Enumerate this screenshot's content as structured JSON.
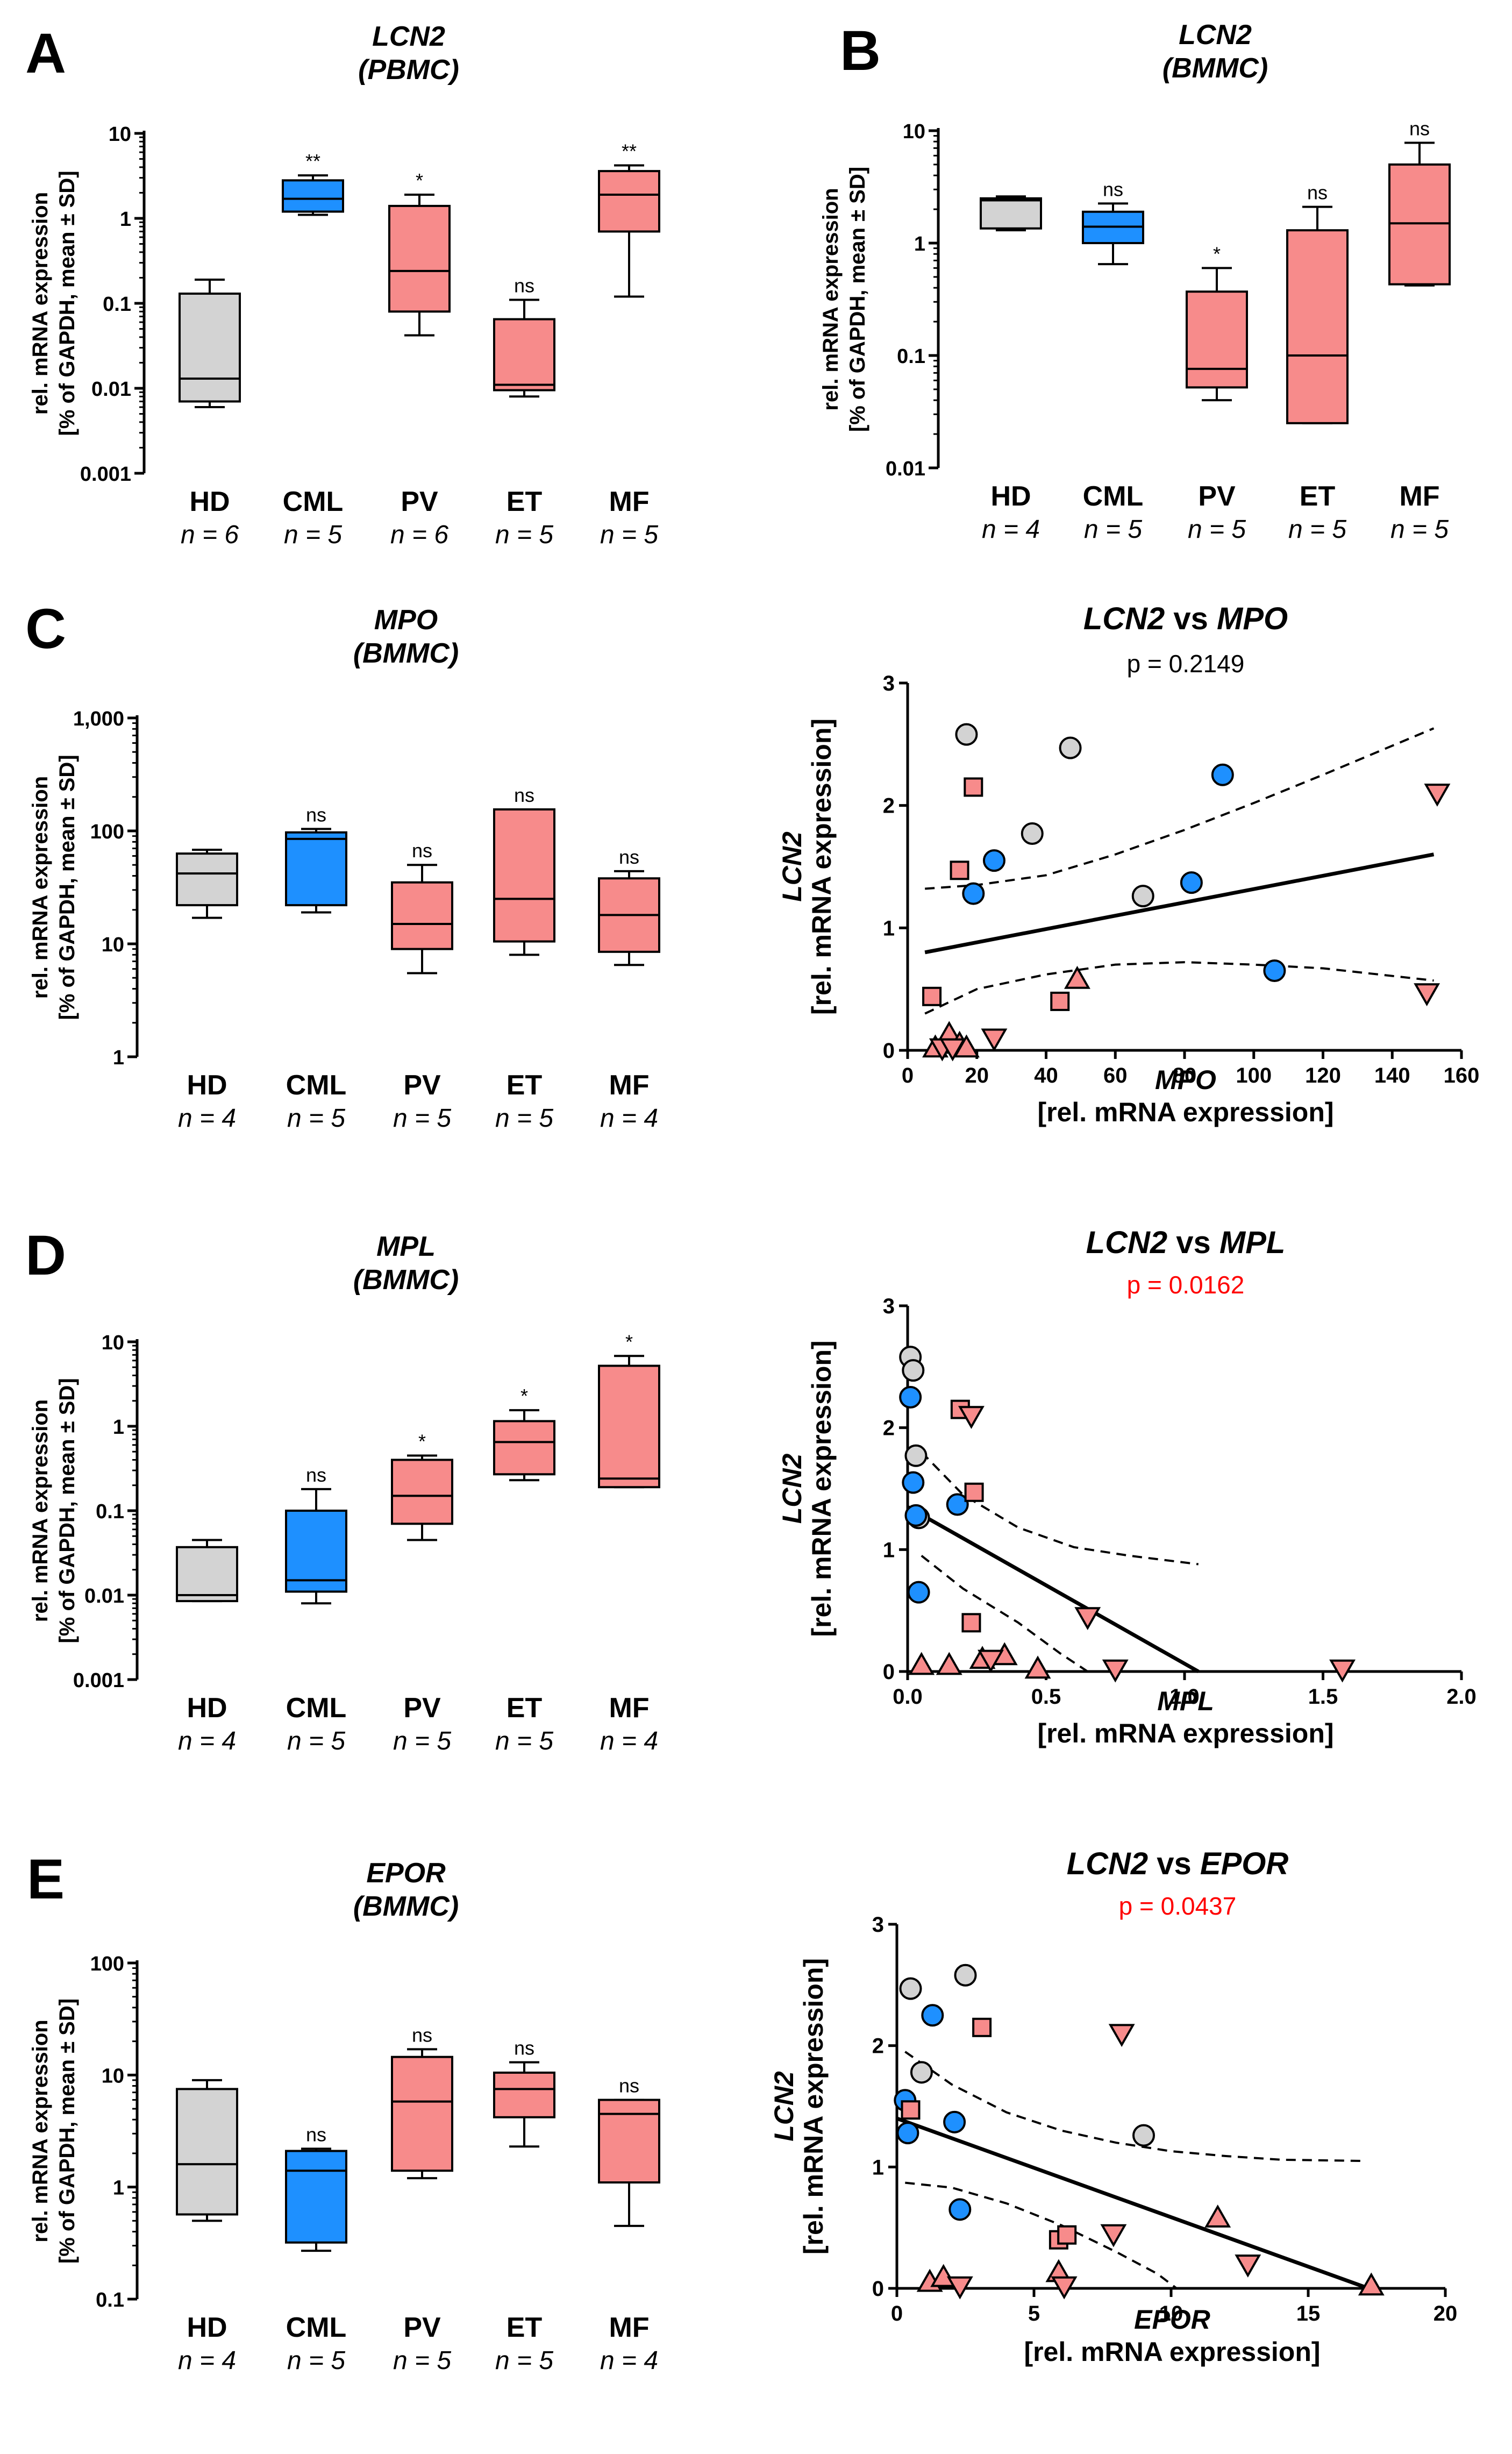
{
  "figure_colors": {
    "HD": "#d3d3d3",
    "CML": "#1e90ff",
    "MPN": "#f78b8b",
    "sig": "#ff0000",
    "fg": "#000000"
  },
  "chart_data": [
    {
      "id": "A",
      "type": "box",
      "panel_letter": "A",
      "title_line1": "LCN2",
      "title_line2": "(PBMC)",
      "ylabel_line1": "rel. mRNA expression",
      "ylabel_line2": "[% of GAPDH, mean ± SD]",
      "scale": "log",
      "ylim": [
        0.001,
        10
      ],
      "yticks": [
        0.001,
        0.01,
        0.1,
        1,
        10
      ],
      "ytick_labels": [
        "0.001",
        "0.01",
        "0.1",
        "1",
        "10"
      ],
      "categories": [
        "HD",
        "CML",
        "PV",
        "ET",
        "MF"
      ],
      "n_labels": [
        "n = 6",
        "n = 5",
        "n = 6",
        "n = 5",
        "n = 5"
      ],
      "colors": [
        "#d3d3d3",
        "#1e90ff",
        "#f78b8b",
        "#f78b8b",
        "#f78b8b"
      ],
      "boxes": [
        {
          "min": 0.006,
          "q1": 0.007,
          "median": 0.013,
          "q3": 0.13,
          "max": 0.19,
          "sig": ""
        },
        {
          "min": 1.1,
          "q1": 1.2,
          "median": 1.7,
          "q3": 2.8,
          "max": 3.2,
          "sig": "**"
        },
        {
          "min": 0.042,
          "q1": 0.08,
          "median": 0.24,
          "q3": 1.4,
          "max": 1.9,
          "sig": "*"
        },
        {
          "min": 0.008,
          "q1": 0.0095,
          "median": 0.011,
          "q3": 0.065,
          "max": 0.11,
          "sig": "ns"
        },
        {
          "min": 0.12,
          "q1": 0.7,
          "median": 1.9,
          "q3": 3.6,
          "max": 4.2,
          "sig": "**"
        }
      ]
    },
    {
      "id": "B",
      "type": "box",
      "panel_letter": "B",
      "title_line1": "LCN2",
      "title_line2": "(BMMC)",
      "ylabel_line1": "rel. mRNA expression",
      "ylabel_line2": "[% of GAPDH, mean ± SD]",
      "scale": "log",
      "ylim": [
        0.01,
        10
      ],
      "yticks": [
        0.01,
        0.1,
        1,
        10
      ],
      "ytick_labels": [
        "0.01",
        "0.1",
        "1",
        "10"
      ],
      "categories": [
        "HD",
        "CML",
        "PV",
        "ET",
        "MF"
      ],
      "n_labels": [
        "n = 4",
        "n = 5",
        "n = 5",
        "n = 5",
        "n = 5"
      ],
      "colors": [
        "#d3d3d3",
        "#1e90ff",
        "#f78b8b",
        "#f78b8b",
        "#f78b8b"
      ],
      "boxes": [
        {
          "min": 1.3,
          "q1": 1.35,
          "median": 2.4,
          "q3": 2.5,
          "max": 2.6,
          "sig": ""
        },
        {
          "min": 0.65,
          "q1": 1.0,
          "median": 1.4,
          "q3": 1.9,
          "max": 2.25,
          "sig": "ns"
        },
        {
          "min": 0.04,
          "q1": 0.052,
          "median": 0.076,
          "q3": 0.37,
          "max": 0.6,
          "sig": "*"
        },
        {
          "min": 0.025,
          "q1": 0.025,
          "median": 0.1,
          "q3": 1.3,
          "max": 2.1,
          "sig": "ns"
        },
        {
          "min": 0.42,
          "q1": 0.43,
          "median": 1.5,
          "q3": 5.0,
          "max": 7.8,
          "sig": "ns"
        }
      ]
    },
    {
      "id": "C",
      "type": "box",
      "panel_letter": "C",
      "title_line1": "MPO",
      "title_line2": "(BMMC)",
      "ylabel_line1": "rel. mRNA expression",
      "ylabel_line2": "[% of GAPDH, mean ± SD]",
      "scale": "log",
      "ylim": [
        1,
        1000
      ],
      "yticks": [
        1,
        10,
        100,
        1000
      ],
      "ytick_labels": [
        "1",
        "10",
        "100",
        "1,000"
      ],
      "categories": [
        "HD",
        "CML",
        "PV",
        "ET",
        "MF"
      ],
      "n_labels": [
        "n = 4",
        "n = 5",
        "n = 5",
        "n = 5",
        "n = 4"
      ],
      "colors": [
        "#d3d3d3",
        "#1e90ff",
        "#f78b8b",
        "#f78b8b",
        "#f78b8b"
      ],
      "boxes": [
        {
          "min": 17,
          "q1": 22,
          "median": 42,
          "q3": 63,
          "max": 68,
          "sig": ""
        },
        {
          "min": 19,
          "q1": 22,
          "median": 85,
          "q3": 97,
          "max": 104,
          "sig": "ns"
        },
        {
          "min": 5.5,
          "q1": 9,
          "median": 15,
          "q3": 35,
          "max": 50,
          "sig": "ns"
        },
        {
          "min": 8,
          "q1": 10.5,
          "median": 25,
          "q3": 155,
          "max": 155,
          "sig": "ns"
        },
        {
          "min": 6.5,
          "q1": 8.5,
          "median": 18,
          "q3": 38,
          "max": 44,
          "sig": "ns"
        }
      ]
    },
    {
      "id": "D",
      "type": "box",
      "panel_letter": "D",
      "title_line1": "MPL",
      "title_line2": "(BMMC)",
      "ylabel_line1": "rel. mRNA expression",
      "ylabel_line2": "[% of GAPDH, mean ± SD]",
      "scale": "log",
      "ylim": [
        0.001,
        10
      ],
      "yticks": [
        0.001,
        0.01,
        0.1,
        1,
        10
      ],
      "ytick_labels": [
        "0.001",
        "0.01",
        "0.1",
        "1",
        "10"
      ],
      "categories": [
        "HD",
        "CML",
        "PV",
        "ET",
        "MF"
      ],
      "n_labels": [
        "n = 4",
        "n = 5",
        "n = 5",
        "n = 5",
        "n = 4"
      ],
      "colors": [
        "#d3d3d3",
        "#1e90ff",
        "#f78b8b",
        "#f78b8b",
        "#f78b8b"
      ],
      "boxes": [
        {
          "min": 0.0085,
          "q1": 0.0085,
          "median": 0.01,
          "q3": 0.037,
          "max": 0.045,
          "sig": ""
        },
        {
          "min": 0.008,
          "q1": 0.011,
          "median": 0.015,
          "q3": 0.1,
          "max": 0.18,
          "sig": "ns"
        },
        {
          "min": 0.045,
          "q1": 0.07,
          "median": 0.15,
          "q3": 0.4,
          "max": 0.45,
          "sig": "*"
        },
        {
          "min": 0.23,
          "q1": 0.27,
          "median": 0.65,
          "q3": 1.15,
          "max": 1.55,
          "sig": "*"
        },
        {
          "min": 0.19,
          "q1": 0.19,
          "median": 0.24,
          "q3": 5.2,
          "max": 6.8,
          "sig": "*"
        }
      ]
    },
    {
      "id": "E",
      "type": "box",
      "panel_letter": "E",
      "title_line1": "EPOR",
      "title_line2": "(BMMC)",
      "ylabel_line1": "rel. mRNA expression",
      "ylabel_line2": "[% of GAPDH, mean ± SD]",
      "scale": "log",
      "ylim": [
        0.1,
        100
      ],
      "yticks": [
        0.1,
        1,
        10,
        100
      ],
      "ytick_labels": [
        "0.1",
        "1",
        "10",
        "100"
      ],
      "categories": [
        "HD",
        "CML",
        "PV",
        "ET",
        "MF"
      ],
      "n_labels": [
        "n = 4",
        "n = 5",
        "n = 5",
        "n = 5",
        "n = 4"
      ],
      "colors": [
        "#d3d3d3",
        "#1e90ff",
        "#f78b8b",
        "#f78b8b",
        "#f78b8b"
      ],
      "boxes": [
        {
          "min": 0.5,
          "q1": 0.57,
          "median": 1.6,
          "q3": 7.5,
          "max": 9,
          "sig": ""
        },
        {
          "min": 0.27,
          "q1": 0.32,
          "median": 1.4,
          "q3": 2.1,
          "max": 2.2,
          "sig": "ns"
        },
        {
          "min": 1.2,
          "q1": 1.4,
          "median": 5.8,
          "q3": 14.5,
          "max": 17,
          "sig": "ns"
        },
        {
          "min": 2.3,
          "q1": 4.2,
          "median": 7.5,
          "q3": 10.5,
          "max": 13,
          "sig": "ns"
        },
        {
          "min": 0.45,
          "q1": 1.1,
          "median": 4.5,
          "q3": 6.0,
          "max": 6.0,
          "sig": "ns"
        }
      ]
    },
    {
      "id": "C2",
      "type": "scatter",
      "title_part1": "LCN2",
      "title_mid": " vs ",
      "title_part2": "MPO",
      "p_text": "p = 0.2149",
      "p_significant": false,
      "xlabel_line1": "MPO",
      "xlabel_line2": "[rel. mRNA expression]",
      "ylabel_line1": "LCN2",
      "ylabel_line2": "[rel. mRNA expression]",
      "xlim": [
        0,
        160
      ],
      "ylim": [
        0,
        3
      ],
      "xticks": [
        0,
        20,
        40,
        60,
        80,
        100,
        120,
        140,
        160
      ],
      "xtick_labels": [
        "0",
        "20",
        "40",
        "60",
        "80",
        "100",
        "120",
        "140",
        "160"
      ],
      "yticks": [
        0,
        1,
        2,
        3
      ],
      "ytick_labels": [
        "0",
        "1",
        "2",
        "3"
      ],
      "regression": {
        "x": [
          5,
          152
        ],
        "y": [
          0.8,
          1.6
        ]
      },
      "ci_upper": {
        "x": [
          5,
          20,
          40,
          60,
          80,
          100,
          120,
          152
        ],
        "y": [
          1.32,
          1.35,
          1.43,
          1.6,
          1.8,
          2.02,
          2.25,
          2.63
        ]
      },
      "ci_lower": {
        "x": [
          5,
          20,
          40,
          60,
          80,
          100,
          120,
          152
        ],
        "y": [
          0.3,
          0.5,
          0.62,
          0.7,
          0.72,
          0.7,
          0.67,
          0.57
        ]
      },
      "points": [
        {
          "group": "HD",
          "shape": "circle",
          "x": [
            17,
            36,
            47,
            68
          ],
          "y": [
            2.58,
            1.77,
            2.47,
            1.26
          ]
        },
        {
          "group": "CML",
          "shape": "circle",
          "x": [
            19,
            25,
            82,
            91,
            106
          ],
          "y": [
            1.28,
            1.55,
            1.37,
            2.25,
            0.65
          ]
        },
        {
          "group": "PV",
          "shape": "square",
          "x": [
            7,
            15,
            19,
            44
          ],
          "y": [
            0.44,
            1.47,
            2.15,
            0.4
          ]
        },
        {
          "group": "ET",
          "shape": "triangle-up",
          "x": [
            8,
            12,
            15,
            17,
            49
          ],
          "y": [
            0.02,
            0.13,
            0.05,
            0.02,
            0.58
          ]
        },
        {
          "group": "MF",
          "shape": "triangle-down",
          "x": [
            10,
            13,
            25,
            150,
            153
          ],
          "y": [
            0.02,
            0.02,
            0.1,
            0.47,
            2.1
          ]
        }
      ]
    },
    {
      "id": "D2",
      "type": "scatter",
      "title_part1": "LCN2",
      "title_mid": " vs ",
      "title_part2": "MPL",
      "p_text": "p = 0.0162",
      "p_significant": true,
      "xlabel_line1": "MPL",
      "xlabel_line2": "[rel. mRNA expression]",
      "ylabel_line1": "LCN2",
      "ylabel_line2": "[rel. mRNA expression]",
      "xlim": [
        0,
        2
      ],
      "ylim": [
        0,
        3
      ],
      "xticks": [
        0,
        0.5,
        1,
        1.5,
        2
      ],
      "xtick_labels": [
        "0.0",
        "0.5",
        "1.0",
        "1.5",
        "2.0"
      ],
      "yticks": [
        0,
        1,
        2,
        3
      ],
      "ytick_labels": [
        "0",
        "1",
        "2",
        "3"
      ],
      "regression": {
        "x": [
          0,
          1.05
        ],
        "y": [
          1.35,
          0
        ]
      },
      "ci_upper": {
        "x": [
          0.05,
          0.2,
          0.4,
          0.6,
          0.8,
          1.05
        ],
        "y": [
          1.8,
          1.45,
          1.18,
          1.02,
          0.95,
          0.88
        ]
      },
      "ci_lower": {
        "x": [
          0.05,
          0.2,
          0.4,
          0.55,
          0.65
        ],
        "y": [
          0.95,
          0.68,
          0.4,
          0.15,
          0
        ]
      },
      "points": [
        {
          "group": "HD",
          "shape": "circle",
          "x": [
            0.01,
            0.02,
            0.03,
            0.04
          ],
          "y": [
            2.58,
            2.47,
            1.77,
            1.26
          ]
        },
        {
          "group": "CML",
          "shape": "circle",
          "x": [
            0.01,
            0.02,
            0.03,
            0.04,
            0.18
          ],
          "y": [
            2.25,
            1.55,
            1.28,
            0.65,
            1.37
          ]
        },
        {
          "group": "PV",
          "shape": "square",
          "x": [
            0.19,
            0.23,
            0.24
          ],
          "y": [
            2.15,
            0.4,
            1.47
          ]
        },
        {
          "group": "ET",
          "shape": "triangle-up",
          "x": [
            0.05,
            0.15,
            0.27,
            0.35,
            0.47
          ],
          "y": [
            0.05,
            0.05,
            0.1,
            0.13,
            0.02
          ]
        },
        {
          "group": "MF",
          "shape": "triangle-down",
          "x": [
            0.23,
            0.3,
            0.65,
            0.75,
            1.57
          ],
          "y": [
            2.1,
            0.1,
            0.45,
            0.02,
            0.02
          ]
        }
      ]
    },
    {
      "id": "E2",
      "type": "scatter",
      "title_part1": "LCN2",
      "title_mid": " vs ",
      "title_part2": "EPOR",
      "p_text": "p = 0.0437",
      "p_significant": true,
      "xlabel_line1": "EPOR",
      "xlabel_line2": "[rel. mRNA expression]",
      "ylabel_line1": "LCN2",
      "ylabel_line2": "[rel. mRNA expression]",
      "xlim": [
        0,
        20
      ],
      "ylim": [
        0,
        3
      ],
      "xticks": [
        0,
        5,
        10,
        15,
        20
      ],
      "xtick_labels": [
        "0",
        "5",
        "10",
        "15",
        "20"
      ],
      "yticks": [
        0,
        1,
        2,
        3
      ],
      "ytick_labels": [
        "0",
        "1",
        "2",
        "3"
      ],
      "regression": {
        "x": [
          0,
          17.2
        ],
        "y": [
          1.4,
          0
        ]
      },
      "ci_upper": {
        "x": [
          0.3,
          2,
          4,
          6,
          8,
          10,
          12,
          14,
          17
        ],
        "y": [
          1.95,
          1.68,
          1.45,
          1.3,
          1.2,
          1.13,
          1.09,
          1.06,
          1.05
        ]
      },
      "ci_lower": {
        "x": [
          0.3,
          2,
          4,
          6,
          8,
          9.5,
          10.2
        ],
        "y": [
          0.87,
          0.83,
          0.7,
          0.52,
          0.3,
          0.12,
          0
        ]
      },
      "points": [
        {
          "group": "HD",
          "shape": "circle",
          "x": [
            0.5,
            0.9,
            2.5,
            9
          ],
          "y": [
            2.47,
            1.78,
            2.58,
            1.26
          ]
        },
        {
          "group": "CML",
          "shape": "circle",
          "x": [
            0.3,
            0.4,
            1.3,
            2.1,
            2.3
          ],
          "y": [
            1.55,
            1.28,
            2.25,
            1.37,
            0.65
          ]
        },
        {
          "group": "PV",
          "shape": "square",
          "x": [
            0.5,
            3.1,
            5.9,
            6.2
          ],
          "y": [
            1.47,
            2.15,
            0.4,
            0.44
          ]
        },
        {
          "group": "ET",
          "shape": "triangle-up",
          "x": [
            1.2,
            1.7,
            5.9,
            11.7,
            17.3
          ],
          "y": [
            0.05,
            0.09,
            0.13,
            0.58,
            0.02
          ]
        },
        {
          "group": "MF",
          "shape": "triangle-down",
          "x": [
            2.3,
            6.1,
            7.9,
            8.2,
            12.8
          ],
          "y": [
            0.02,
            0.02,
            0.45,
            2.1,
            0.2
          ]
        }
      ]
    }
  ]
}
